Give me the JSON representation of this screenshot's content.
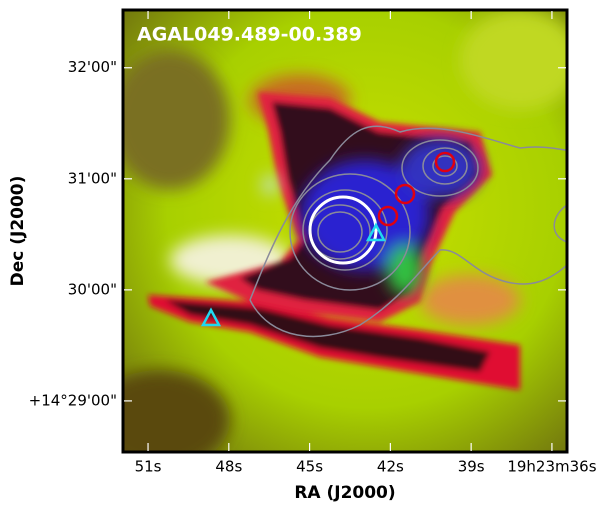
{
  "chart_data": {
    "type": "image",
    "title": "AGAL049.489-00.389",
    "x_label": "RA (J2000)",
    "y_label": "Dec (J2000)",
    "xlim": [
      51.93,
      35.44
    ],
    "xticks": [
      {
        "value": 51,
        "label": "51s"
      },
      {
        "value": 48,
        "label": "48s"
      },
      {
        "value": 45,
        "label": "45s"
      },
      {
        "value": 42,
        "label": "42s"
      },
      {
        "value": 39,
        "label": "39s"
      },
      {
        "value": 36,
        "label": "19h23m36s"
      }
    ],
    "ylim": [
      28.54,
      32.52
    ],
    "yticks": [
      {
        "value": 29,
        "label": "+14°29'00\""
      },
      {
        "value": 30,
        "label": "30'00\""
      },
      {
        "value": 31,
        "label": "31'00\""
      },
      {
        "value": 32,
        "label": "32'00\""
      }
    ]
  }
}
